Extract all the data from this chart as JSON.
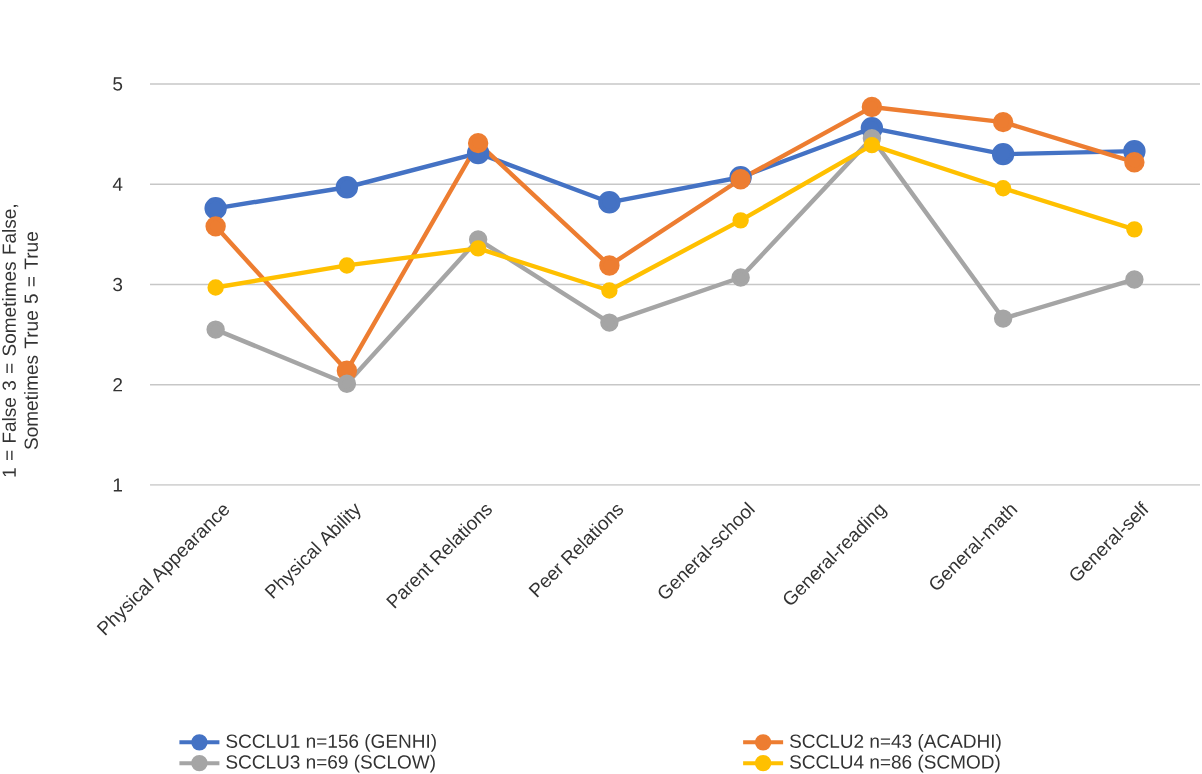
{
  "chart_data": {
    "type": "line",
    "ylabel": "1 = False    3 = Sometimes False, Sometimes True 5 = True",
    "categories": [
      "Physical Appearance",
      "Physical Ability",
      "Parent Relations",
      "Peer Relations",
      "General-school",
      "General-reading",
      "General-math",
      "General-self"
    ],
    "series": [
      {
        "name": "SCCLU1 n=156 (GENHI)",
        "color": "#4472c4",
        "values": [
          3.76,
          3.97,
          4.31,
          3.82,
          4.07,
          4.56,
          4.3,
          4.33
        ]
      },
      {
        "name": "SCCLU2 n=43 (ACADHI)",
        "color": "#ed7d31",
        "values": [
          3.58,
          2.14,
          4.41,
          3.19,
          4.05,
          4.77,
          4.62,
          4.22
        ]
      },
      {
        "name": "SCCLU3 n=69 (SCLOW)",
        "color": "#a5a5a5",
        "values": [
          2.55,
          2.01,
          3.45,
          2.62,
          3.07,
          4.46,
          2.66,
          3.05
        ]
      },
      {
        "name": "SCCLU4 n=86 (SCMOD)",
        "color": "#ffc000",
        "values": [
          2.97,
          3.19,
          3.36,
          2.94,
          3.64,
          4.39,
          3.96,
          3.55
        ]
      }
    ],
    "ylim": [
      1,
      5
    ],
    "yticks": [
      1,
      2,
      3,
      4,
      5
    ],
    "grid": "y",
    "legend": "bottom",
    "marker": "circle",
    "line_style": "solid"
  }
}
